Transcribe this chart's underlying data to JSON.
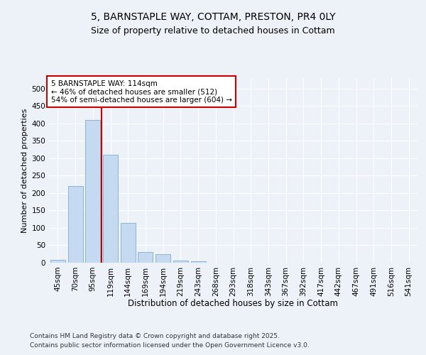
{
  "title_line1": "5, BARNSTAPLE WAY, COTTAM, PRESTON, PR4 0LY",
  "title_line2": "Size of property relative to detached houses in Cottam",
  "xlabel": "Distribution of detached houses by size in Cottam",
  "ylabel": "Number of detached properties",
  "categories": [
    "45sqm",
    "70sqm",
    "95sqm",
    "119sqm",
    "144sqm",
    "169sqm",
    "194sqm",
    "219sqm",
    "243sqm",
    "268sqm",
    "293sqm",
    "318sqm",
    "343sqm",
    "367sqm",
    "392sqm",
    "417sqm",
    "442sqm",
    "467sqm",
    "491sqm",
    "516sqm",
    "541sqm"
  ],
  "values": [
    8,
    220,
    410,
    310,
    115,
    30,
    25,
    7,
    5,
    1,
    0,
    0,
    0,
    0,
    0,
    0,
    0,
    0,
    0,
    0,
    1
  ],
  "bar_color": "#c5d9f0",
  "bar_edge_color": "#7aadd4",
  "vline_x_index": 3,
  "vline_color": "#cc0000",
  "annotation_text": "5 BARNSTAPLE WAY: 114sqm\n← 46% of detached houses are smaller (512)\n54% of semi-detached houses are larger (604) →",
  "annotation_box_color": "#ffffff",
  "annotation_box_edge": "#cc0000",
  "annotation_fontsize": 7.5,
  "title_fontsize": 10,
  "subtitle_fontsize": 9,
  "xlabel_fontsize": 8.5,
  "ylabel_fontsize": 8,
  "tick_fontsize": 7.5,
  "ylim": [
    0,
    530
  ],
  "yticks": [
    0,
    50,
    100,
    150,
    200,
    250,
    300,
    350,
    400,
    450,
    500
  ],
  "background_color": "#edf2f9",
  "plot_bg_color": "#edf2f9",
  "footer_line1": "Contains HM Land Registry data © Crown copyright and database right 2025.",
  "footer_line2": "Contains public sector information licensed under the Open Government Licence v3.0.",
  "footer_fontsize": 6.5
}
